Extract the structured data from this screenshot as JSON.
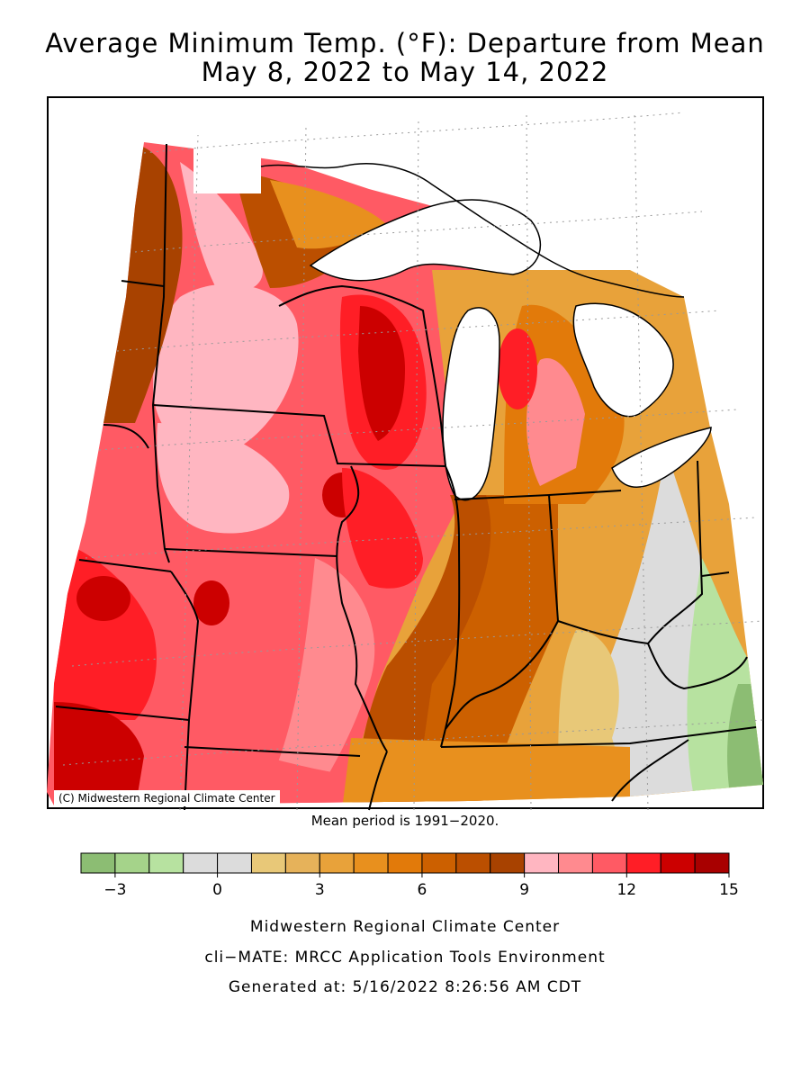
{
  "title_line1": "Average Minimum Temp. (°F): Departure from Mean",
  "title_line2": "May 8, 2022 to May 14, 2022",
  "copyright": "(C) Midwestern Regional Climate Center",
  "mean_period": "Mean period is 1991−2020.",
  "legend": {
    "colors": [
      "#8cbd73",
      "#a5d38a",
      "#b7e2a0",
      "#dcdcdc",
      "#dcdcdc",
      "#e8c878",
      "#e6b25a",
      "#e8a23a",
      "#e8901e",
      "#e27a0a",
      "#cc6000",
      "#bb4f00",
      "#a84200",
      "#ffb6c1",
      "#ff8a8f",
      "#ff5a64",
      "#ff1e26",
      "#cc0000",
      "#a80000"
    ],
    "tick_labels": [
      "−3",
      "0",
      "3",
      "6",
      "9",
      "12",
      "15"
    ]
  },
  "footer": {
    "line1": "Midwestern Regional Climate Center",
    "line2": "cli−MATE: MRCC Application Tools Environment",
    "line3": "Generated at: 5/16/2022 8:26:56 AM CDT"
  }
}
